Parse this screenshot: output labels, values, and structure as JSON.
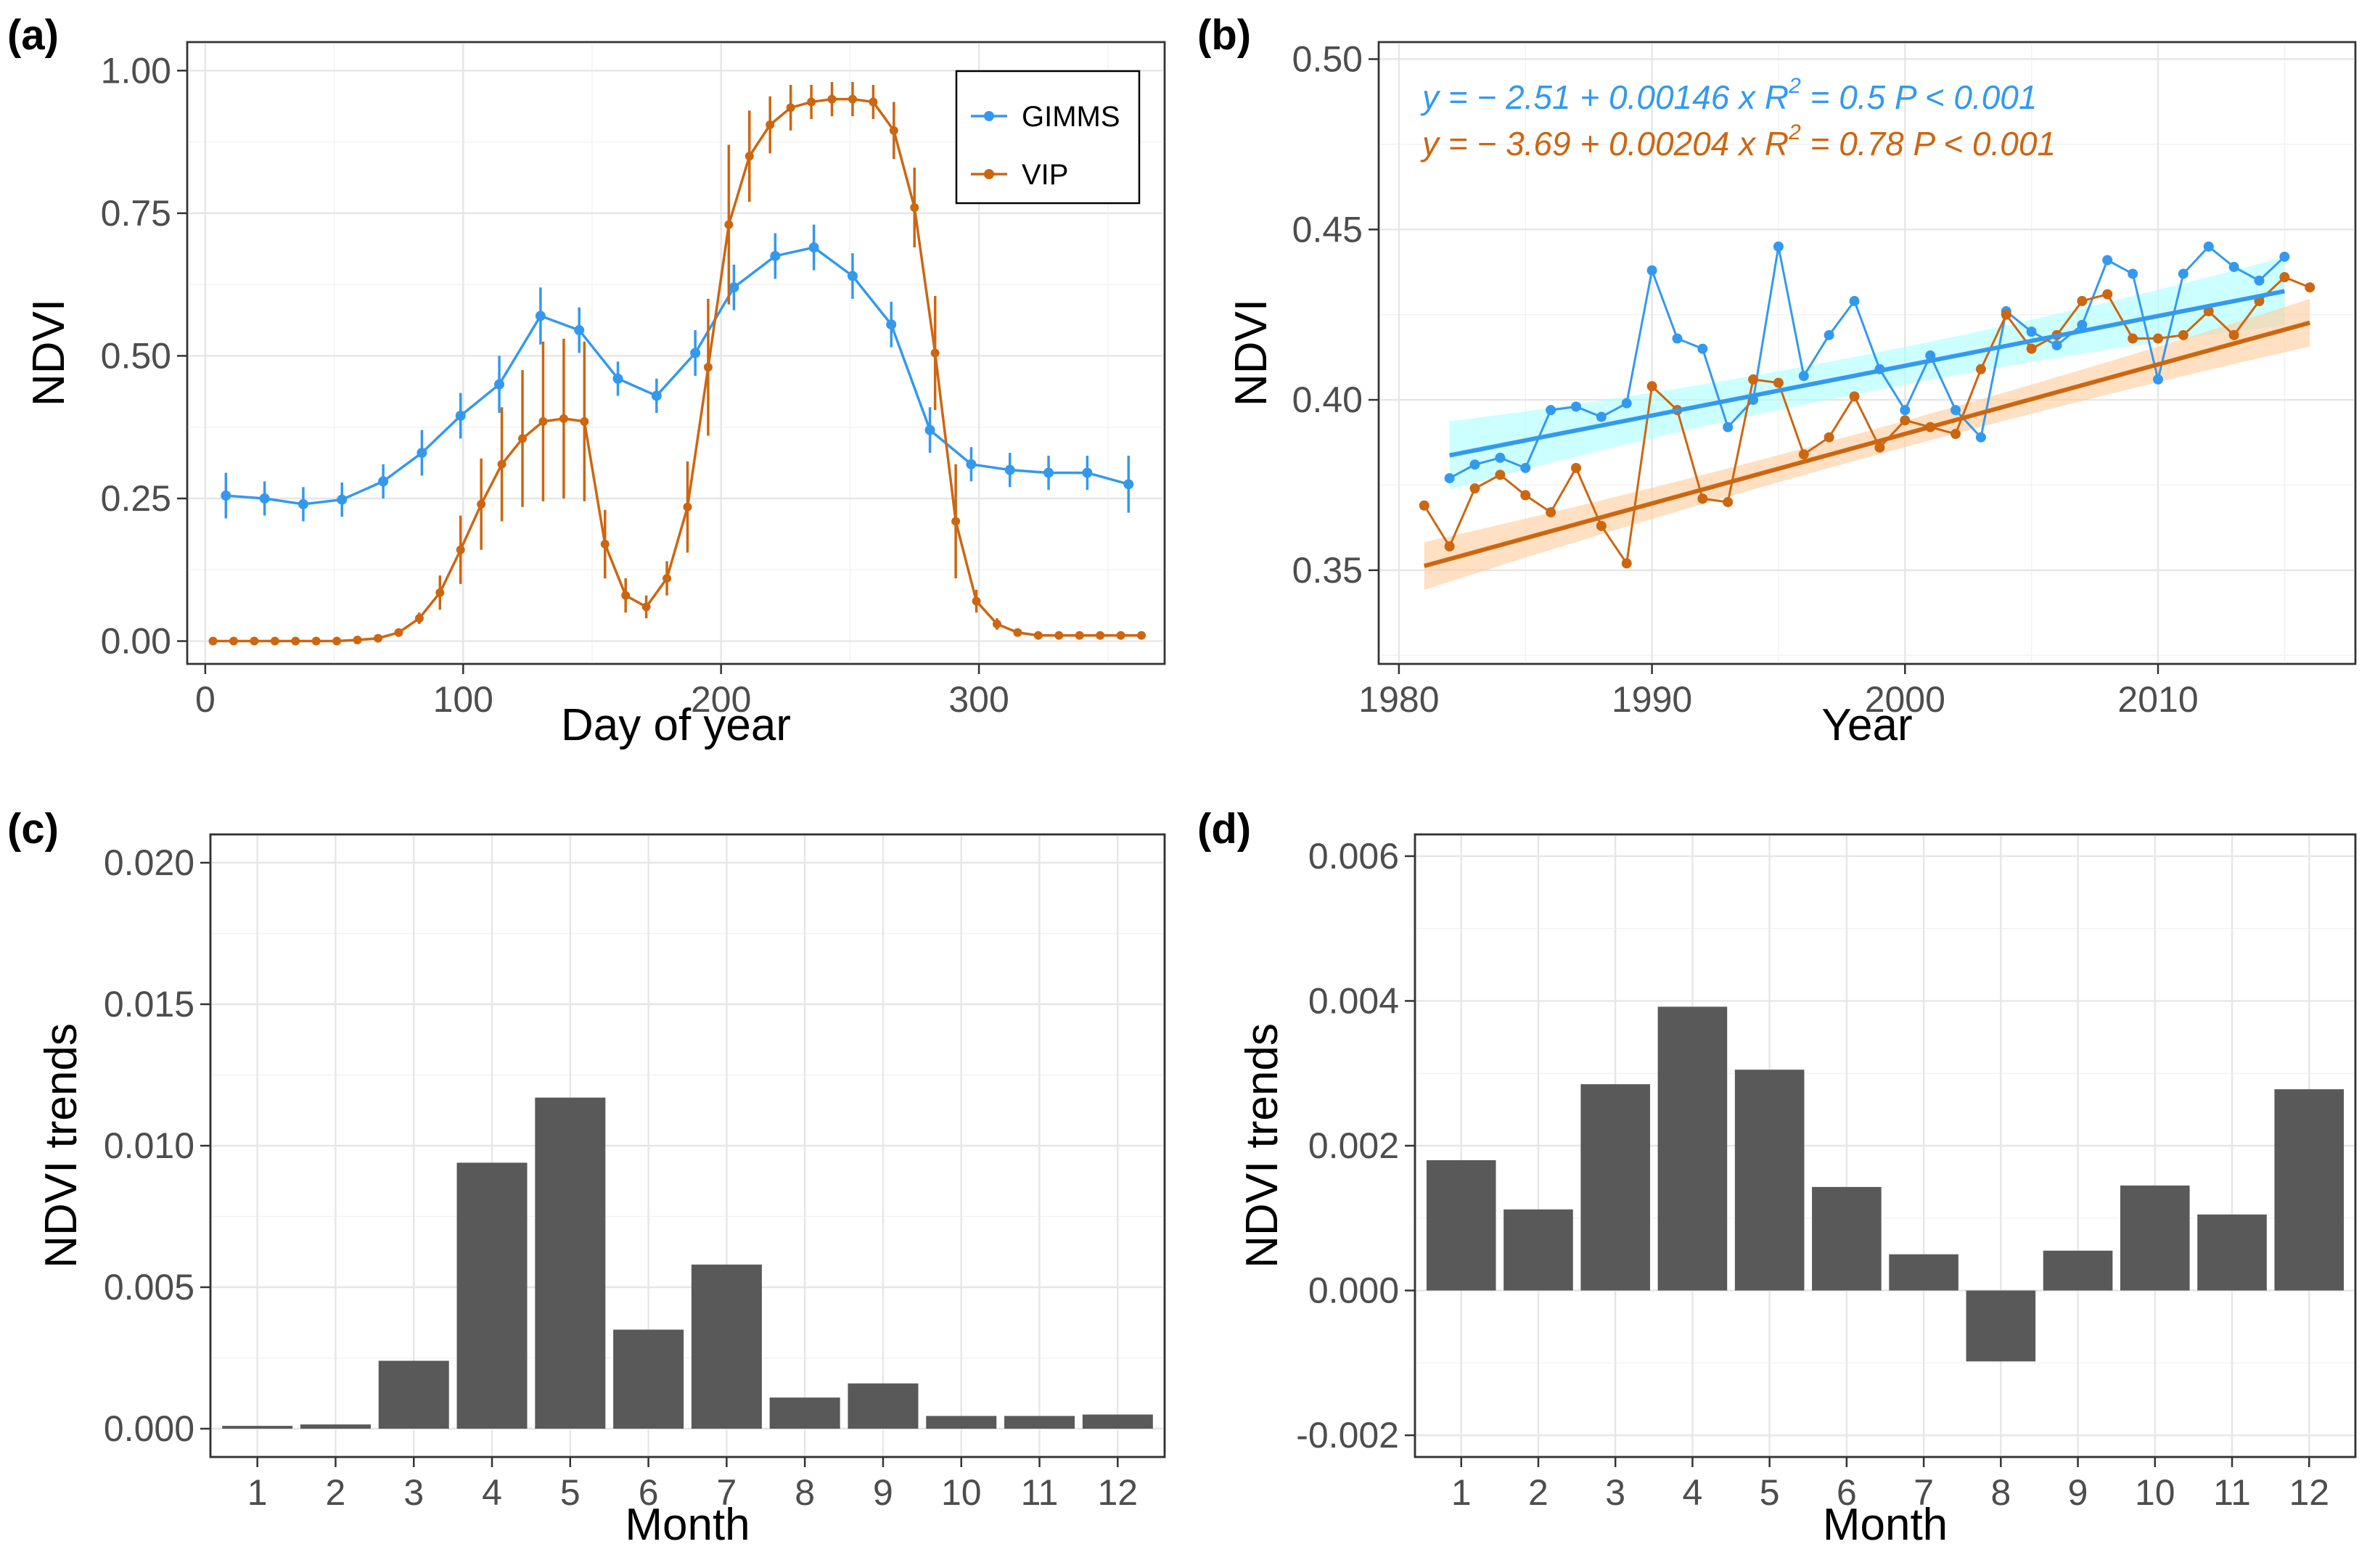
{
  "colors": {
    "gimms": "#3399ee",
    "vip": "#cc6611",
    "gimms_band": "#aaffff",
    "vip_band": "#ffcc99",
    "bar": "#595959"
  },
  "chart_data": [
    {
      "panel": "(a)",
      "type": "line",
      "xlabel": "Day of year",
      "ylabel": "NDVI",
      "xlim": [
        -7,
        372
      ],
      "ylim": [
        -0.04,
        1.05
      ],
      "xticks": [
        0,
        100,
        200,
        300
      ],
      "yticks": [
        0.0,
        0.25,
        0.5,
        0.75,
        1.0
      ],
      "ytick_labels": [
        "0.00",
        "0.25",
        "0.50",
        "0.75",
        "1.00"
      ],
      "legend": {
        "position": "top-right",
        "entries": [
          "GIMMS",
          "VIP"
        ]
      },
      "series": [
        {
          "name": "GIMMS",
          "x": [
            8,
            23,
            38,
            53,
            69,
            84,
            99,
            114,
            130,
            145,
            160,
            175,
            190,
            205,
            221,
            236,
            251,
            266,
            281,
            297,
            312,
            327,
            342,
            358
          ],
          "y": [
            0.255,
            0.25,
            0.24,
            0.248,
            0.28,
            0.33,
            0.395,
            0.45,
            0.57,
            0.545,
            0.46,
            0.43,
            0.505,
            0.62,
            0.675,
            0.69,
            0.64,
            0.555,
            0.37,
            0.31,
            0.3,
            0.295,
            0.295,
            0.275
          ],
          "err": [
            0.04,
            0.03,
            0.03,
            0.03,
            0.03,
            0.04,
            0.04,
            0.05,
            0.05,
            0.04,
            0.03,
            0.03,
            0.04,
            0.04,
            0.04,
            0.04,
            0.04,
            0.04,
            0.04,
            0.03,
            0.03,
            0.03,
            0.03,
            0.05
          ]
        },
        {
          "name": "VIP",
          "x": [
            3,
            11,
            19,
            27,
            35,
            43,
            51,
            59,
            67,
            75,
            83,
            91,
            99,
            107,
            115,
            123,
            131,
            139,
            147,
            155,
            163,
            171,
            179,
            187,
            195,
            203,
            211,
            219,
            227,
            235,
            243,
            251,
            259,
            267,
            275,
            283,
            291,
            299,
            307,
            315,
            323,
            331,
            339,
            347,
            355,
            363
          ],
          "y": [
            0.0,
            0.0,
            0.0,
            0.0,
            0.0,
            0.0,
            0.0,
            0.002,
            0.005,
            0.015,
            0.04,
            0.085,
            0.16,
            0.24,
            0.31,
            0.355,
            0.385,
            0.39,
            0.385,
            0.17,
            0.08,
            0.06,
            0.11,
            0.235,
            0.48,
            0.73,
            0.85,
            0.905,
            0.935,
            0.945,
            0.95,
            0.95,
            0.945,
            0.895,
            0.76,
            0.505,
            0.21,
            0.07,
            0.03,
            0.015,
            0.01,
            0.01,
            0.01,
            0.01,
            0.01,
            0.01
          ],
          "err": [
            0,
            0,
            0,
            0,
            0,
            0,
            0,
            0,
            0,
            0,
            0.01,
            0.03,
            0.06,
            0.08,
            0.1,
            0.12,
            0.14,
            0.14,
            0.14,
            0.06,
            0.03,
            0.02,
            0.03,
            0.08,
            0.12,
            0.14,
            0.08,
            0.05,
            0.04,
            0.03,
            0.03,
            0.03,
            0.03,
            0.05,
            0.07,
            0.1,
            0.1,
            0.02,
            0.01,
            0.005,
            0.005,
            0.005,
            0.005,
            0.005,
            0.005,
            0.005
          ]
        }
      ]
    },
    {
      "panel": "(b)",
      "type": "line",
      "xlabel": "Year",
      "ylabel": "NDVI",
      "xlim": [
        1979.2,
        2017.8
      ],
      "ylim": [
        0.3225,
        0.505
      ],
      "xticks": [
        1980,
        1990,
        2000,
        2010
      ],
      "yticks": [
        0.35,
        0.4,
        0.45,
        0.5
      ],
      "ytick_labels": [
        "0.35",
        "0.40",
        "0.45",
        "0.50"
      ],
      "annotations": [
        {
          "series": "GIMMS",
          "eq": "y = − 2.51 + 0.00146 x",
          "r2_label": "R",
          "r2_sup": "2",
          "r2_value": "= 0.5",
          "p": "P < 0.001"
        },
        {
          "series": "VIP",
          "eq": "y = − 3.69 + 0.00204 x",
          "r2_label": "R",
          "r2_sup": "2",
          "r2_value": "= 0.78",
          "p": "P < 0.001"
        }
      ],
      "series": [
        {
          "name": "GIMMS",
          "x": [
            1982,
            1983,
            1984,
            1985,
            1986,
            1987,
            1988,
            1989,
            1990,
            1991,
            1992,
            1993,
            1994,
            1995,
            1996,
            1997,
            1998,
            1999,
            2000,
            2001,
            2002,
            2003,
            2004,
            2005,
            2006,
            2007,
            2008,
            2009,
            2010,
            2011,
            2012,
            2013,
            2014,
            2015
          ],
          "y": [
            0.377,
            0.381,
            0.383,
            0.38,
            0.397,
            0.398,
            0.395,
            0.399,
            0.438,
            0.418,
            0.415,
            0.392,
            0.4,
            0.445,
            0.407,
            0.419,
            0.429,
            0.409,
            0.397,
            0.413,
            0.397,
            0.389,
            0.426,
            0.42,
            0.416,
            0.422,
            0.441,
            0.437,
            0.406,
            0.437,
            0.445,
            0.439,
            0.435,
            0.442
          ],
          "fit": [
            -2.51,
            0.00146
          ],
          "band": 0.01
        },
        {
          "name": "VIP",
          "x": [
            1981,
            1982,
            1983,
            1984,
            1985,
            1986,
            1987,
            1988,
            1989,
            1990,
            1991,
            1992,
            1993,
            1994,
            1995,
            1996,
            1997,
            1998,
            1999,
            2000,
            2001,
            2002,
            2003,
            2004,
            2005,
            2006,
            2007,
            2008,
            2009,
            2010,
            2011,
            2012,
            2013,
            2014,
            2015,
            2016
          ],
          "y": [
            0.369,
            0.357,
            0.374,
            0.378,
            0.372,
            0.367,
            0.38,
            0.363,
            0.352,
            0.404,
            0.397,
            0.371,
            0.37,
            0.406,
            0.405,
            0.384,
            0.389,
            0.401,
            0.386,
            0.394,
            0.392,
            0.39,
            0.409,
            0.425,
            0.415,
            0.419,
            0.429,
            0.431,
            0.418,
            0.418,
            0.419,
            0.426,
            0.419,
            0.429,
            0.436,
            0.433
          ],
          "fit": [
            -3.69,
            0.00204
          ],
          "band": 0.007
        }
      ]
    },
    {
      "panel": "(c)",
      "type": "bar",
      "xlabel": "Month",
      "ylabel": "NDVI trends",
      "categories": [
        "1",
        "2",
        "3",
        "4",
        "5",
        "6",
        "7",
        "8",
        "9",
        "10",
        "11",
        "12"
      ],
      "values": [
        0.0001,
        0.00015,
        0.0024,
        0.0094,
        0.0117,
        0.0035,
        0.0058,
        0.0011,
        0.0016,
        0.00045,
        0.00045,
        0.0005
      ],
      "ylim": [
        -0.001,
        0.021
      ],
      "yticks": [
        0.0,
        0.005,
        0.01,
        0.015,
        0.02
      ],
      "ytick_labels": [
        "0.000",
        "0.005",
        "0.010",
        "0.015",
        "0.020"
      ]
    },
    {
      "panel": "(d)",
      "type": "bar",
      "xlabel": "Month",
      "ylabel": "NDVI trends",
      "categories": [
        "1",
        "2",
        "3",
        "4",
        "5",
        "6",
        "7",
        "8",
        "9",
        "10",
        "11",
        "12"
      ],
      "values": [
        0.0018,
        0.00112,
        0.00285,
        0.00392,
        0.00305,
        0.00143,
        0.0005,
        -0.00098,
        0.00055,
        0.00145,
        0.00105,
        0.00278
      ],
      "ylim": [
        -0.0023,
        0.0063
      ],
      "yticks": [
        -0.002,
        0.0,
        0.002,
        0.004,
        0.006
      ],
      "ytick_labels": [
        "-0.002",
        "0.000",
        "0.002",
        "0.004",
        "0.006"
      ]
    }
  ]
}
